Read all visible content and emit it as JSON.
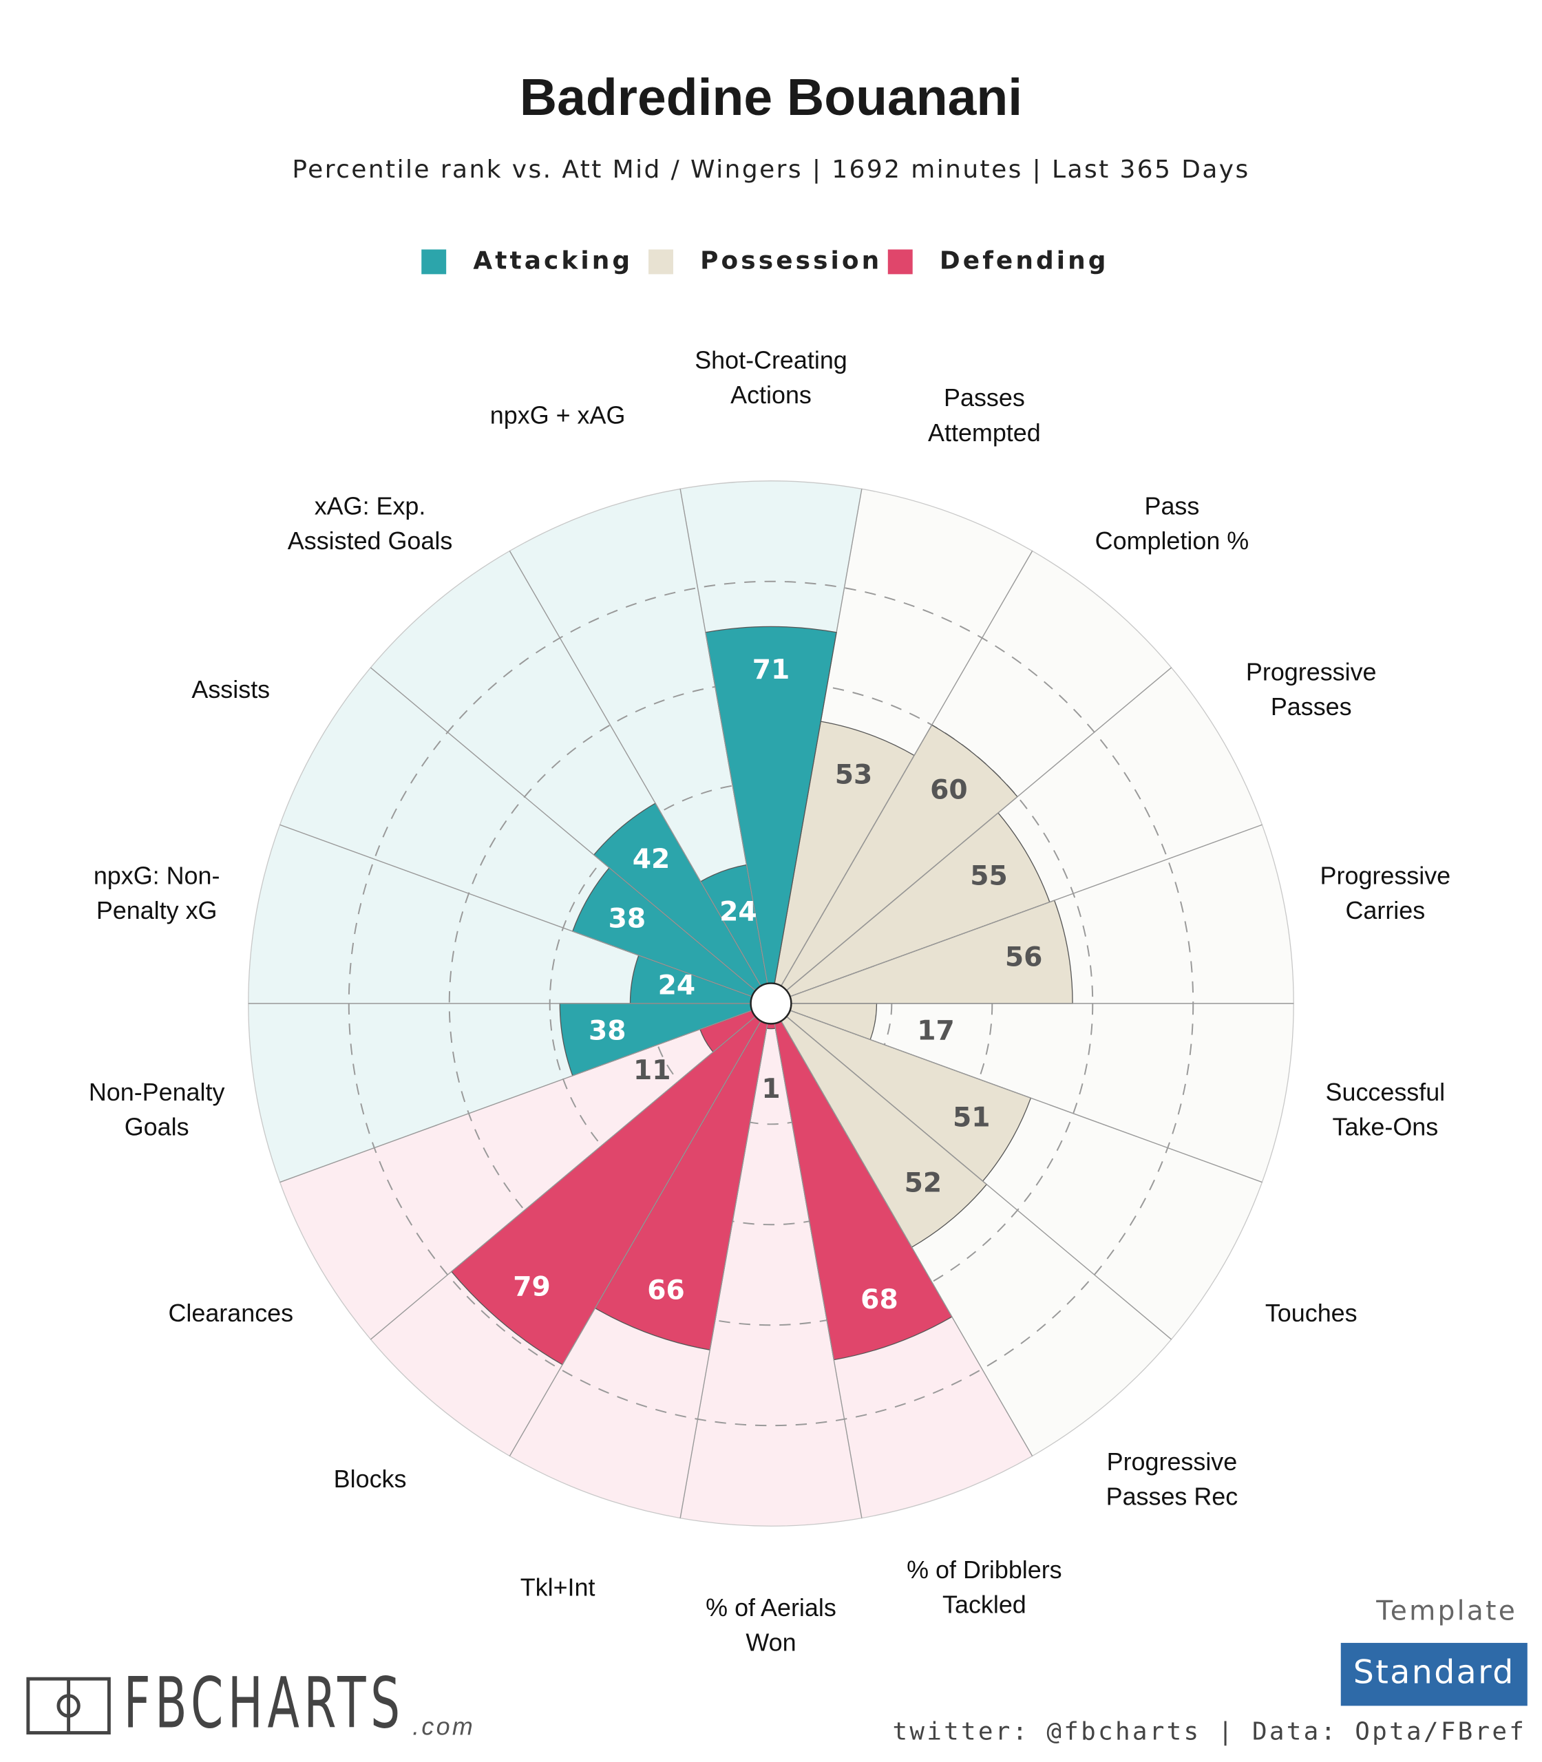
{
  "chart_data": {
    "type": "pizza",
    "title": "Badredine Bouanani",
    "subtitle": "Percentile rank vs. Att Mid / Wingers | 1692 minutes | Last 365 Days",
    "ylim": [
      0,
      100
    ],
    "yticks": [
      20,
      40,
      60,
      80
    ],
    "series": [
      {
        "name": "Attacking",
        "color": "#2ca5ab",
        "background_color": "#eaf6f6",
        "categories": [
          [
            "Non-Penalty",
            "Goals"
          ],
          [
            "npxG: Non-",
            "Penalty xG"
          ],
          [
            "Assists"
          ],
          [
            "xAG: Exp.",
            "Assisted Goals"
          ],
          [
            "npxG + xAG"
          ],
          [
            "Shot-Creating",
            "Actions"
          ]
        ],
        "values": [
          38,
          24,
          38,
          42,
          24,
          71
        ]
      },
      {
        "name": "Possession",
        "color": "#e8e2d2",
        "background_color": "#fbfbf9",
        "categories": [
          [
            "Passes",
            "Attempted"
          ],
          [
            "Pass",
            "Completion %"
          ],
          [
            "Progressive",
            "Passes"
          ],
          [
            "Progressive",
            "Carries"
          ],
          [
            "Successful",
            "Take-Ons"
          ],
          [
            "Touches"
          ],
          [
            "Progressive",
            "Passes Rec"
          ]
        ],
        "values": [
          53,
          60,
          55,
          56,
          17,
          51,
          52
        ]
      },
      {
        "name": "Defending",
        "color": "#e0466b",
        "background_color": "#fdedf1",
        "categories": [
          [
            "% of Dribblers",
            "Tackled"
          ],
          [
            "% of Aerials",
            "Won"
          ],
          [
            "Tkl+Int"
          ],
          [
            "Blocks"
          ],
          [
            "Clearances"
          ]
        ],
        "values": [
          68,
          1,
          66,
          79,
          11
        ]
      }
    ]
  },
  "footer": {
    "logo": "FBCHARTS",
    "logo_suffix": ".com",
    "template_label": "Template",
    "template": "Standard",
    "credit": "twitter: @fbcharts | Data: Opta/FBref"
  }
}
